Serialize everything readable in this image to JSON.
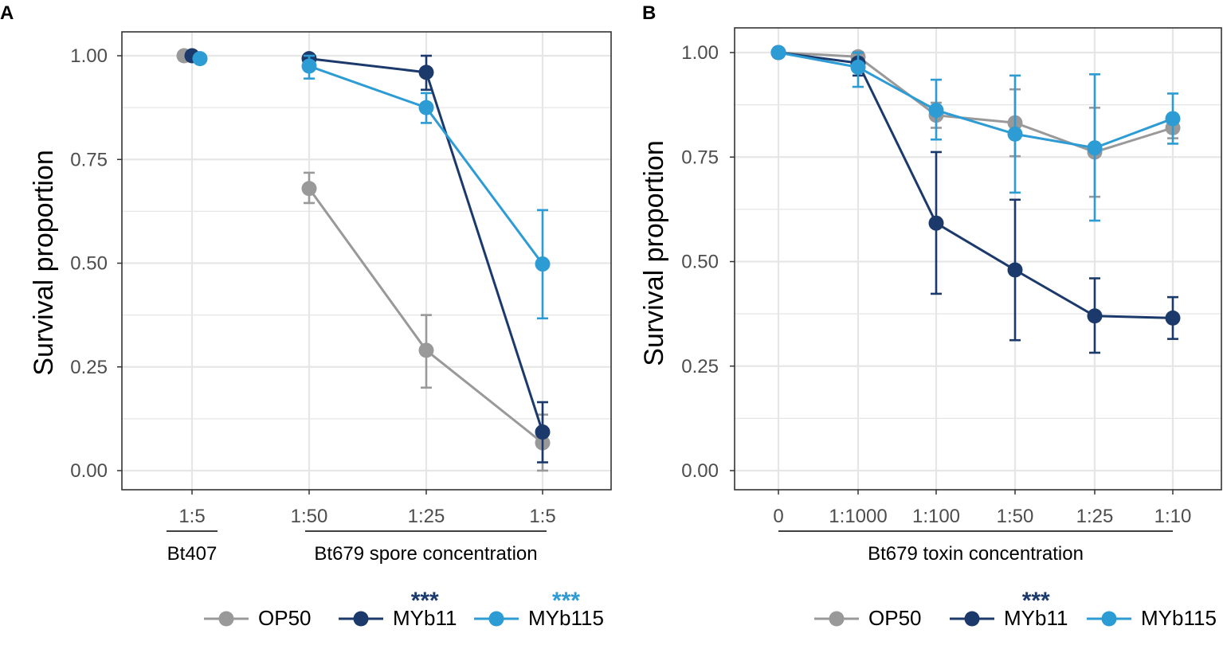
{
  "colors": {
    "OP50": "#999999",
    "MYb11": "#1b3a6b",
    "MYb115": "#2d9bd4",
    "grid": "#e6e6e6",
    "frame": "#333333",
    "tick_text": "#4d4d4d"
  },
  "legend_names": [
    "OP50",
    "MYb11",
    "MYb115"
  ],
  "chart_data": [
    {
      "type": "line",
      "panel_label": "A",
      "ylabel": "Survival proportion",
      "ylim": [
        0,
        1
      ],
      "yticks": [
        0,
        0.25,
        0.5,
        0.75,
        1
      ],
      "ytick_labels": [
        "0.00",
        "0.25",
        "0.50",
        "0.75",
        "1.00"
      ],
      "categories": [
        "1:5",
        "1:50",
        "1:25",
        "1:5"
      ],
      "groups": [
        {
          "label": "Bt407",
          "from": 0,
          "to": 0
        },
        {
          "label": "Bt679 spore concentration",
          "from": 1,
          "to": 3
        }
      ],
      "series": [
        {
          "name": "OP50",
          "points": [
            {
              "i": 0,
              "y": 1.0,
              "lo": null,
              "hi": null,
              "line": false
            },
            {
              "i": 1,
              "y": 0.68,
              "lo": 0.645,
              "hi": 0.718,
              "line": true
            },
            {
              "i": 2,
              "y": 0.29,
              "lo": 0.2,
              "hi": 0.375,
              "line": true
            },
            {
              "i": 3,
              "y": 0.067,
              "lo": 0.0,
              "hi": 0.135,
              "line": true
            }
          ]
        },
        {
          "name": "MYb11",
          "points": [
            {
              "i": 0,
              "y": 1.0,
              "lo": null,
              "hi": null,
              "line": false
            },
            {
              "i": 1,
              "y": 0.993,
              "lo": 0.975,
              "hi": 1.0,
              "line": true
            },
            {
              "i": 2,
              "y": 0.96,
              "lo": 0.918,
              "hi": 1.0,
              "line": true
            },
            {
              "i": 3,
              "y": 0.093,
              "lo": 0.02,
              "hi": 0.165,
              "line": true
            }
          ]
        },
        {
          "name": "MYb115",
          "points": [
            {
              "i": 0,
              "y": 0.993,
              "lo": null,
              "hi": null,
              "line": false
            },
            {
              "i": 1,
              "y": 0.975,
              "lo": 0.945,
              "hi": 1.0,
              "line": true
            },
            {
              "i": 2,
              "y": 0.875,
              "lo": 0.838,
              "hi": 0.91,
              "line": true
            },
            {
              "i": 3,
              "y": 0.498,
              "lo": 0.367,
              "hi": 0.628,
              "line": true
            }
          ]
        }
      ],
      "significance": [
        {
          "series": "MYb11",
          "label": "***"
        },
        {
          "series": "MYb115",
          "label": "***"
        }
      ]
    },
    {
      "type": "line",
      "panel_label": "B",
      "ylabel": "Survival proportion",
      "ylim": [
        0,
        1
      ],
      "yticks": [
        0,
        0.25,
        0.5,
        0.75,
        1
      ],
      "ytick_labels": [
        "0.00",
        "0.25",
        "0.50",
        "0.75",
        "1.00"
      ],
      "categories": [
        "0",
        "1:1000",
        "1:100",
        "1:50",
        "1:25",
        "1:10"
      ],
      "groups": [
        {
          "label": "Bt679 toxin concentration",
          "from": 0,
          "to": 5
        }
      ],
      "series": [
        {
          "name": "OP50",
          "points": [
            {
              "i": 0,
              "y": 1.0,
              "lo": null,
              "hi": null,
              "line": true
            },
            {
              "i": 1,
              "y": 0.99,
              "lo": 0.965,
              "hi": 1.0,
              "line": true
            },
            {
              "i": 2,
              "y": 0.85,
              "lo": 0.82,
              "hi": 0.88,
              "line": true
            },
            {
              "i": 3,
              "y": 0.832,
              "lo": 0.752,
              "hi": 0.912,
              "line": true
            },
            {
              "i": 4,
              "y": 0.762,
              "lo": 0.655,
              "hi": 0.868,
              "line": true
            },
            {
              "i": 5,
              "y": 0.82,
              "lo": 0.795,
              "hi": 0.845,
              "line": true
            }
          ]
        },
        {
          "name": "MYb11",
          "points": [
            {
              "i": 0,
              "y": 1.0,
              "lo": null,
              "hi": null,
              "line": true
            },
            {
              "i": 1,
              "y": 0.975,
              "lo": 0.945,
              "hi": 1.0,
              "line": true
            },
            {
              "i": 2,
              "y": 0.592,
              "lo": 0.423,
              "hi": 0.762,
              "line": true
            },
            {
              "i": 3,
              "y": 0.48,
              "lo": 0.312,
              "hi": 0.648,
              "line": true
            },
            {
              "i": 4,
              "y": 0.37,
              "lo": 0.282,
              "hi": 0.46,
              "line": true
            },
            {
              "i": 5,
              "y": 0.365,
              "lo": 0.315,
              "hi": 0.415,
              "line": true
            }
          ]
        },
        {
          "name": "MYb115",
          "points": [
            {
              "i": 0,
              "y": 1.0,
              "lo": null,
              "hi": null,
              "line": true
            },
            {
              "i": 1,
              "y": 0.965,
              "lo": 0.918,
              "hi": 1.0,
              "line": true
            },
            {
              "i": 2,
              "y": 0.862,
              "lo": 0.792,
              "hi": 0.935,
              "line": true
            },
            {
              "i": 3,
              "y": 0.805,
              "lo": 0.665,
              "hi": 0.945,
              "line": true
            },
            {
              "i": 4,
              "y": 0.772,
              "lo": 0.598,
              "hi": 0.948,
              "line": true
            },
            {
              "i": 5,
              "y": 0.842,
              "lo": 0.782,
              "hi": 0.902,
              "line": true
            }
          ]
        }
      ],
      "significance": [
        {
          "series": "MYb11",
          "label": "***"
        }
      ]
    }
  ]
}
